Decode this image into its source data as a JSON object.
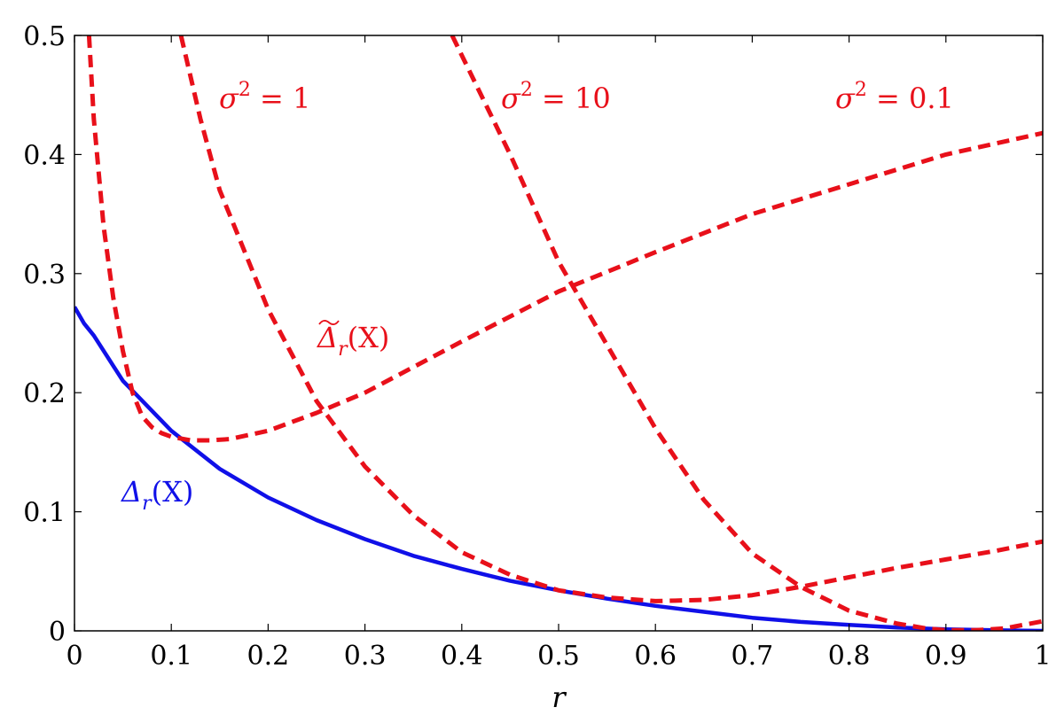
{
  "chart_data": {
    "type": "line",
    "xlabel": "r",
    "ylabel": "",
    "xlim": [
      0,
      1
    ],
    "ylim": [
      0,
      0.5
    ],
    "xticks": [
      "0",
      "0.1",
      "0.2",
      "0.3",
      "0.4",
      "0.5",
      "0.6",
      "0.7",
      "0.8",
      "0.9",
      "1"
    ],
    "yticks": [
      "0",
      "0.1",
      "0.2",
      "0.3",
      "0.4",
      "0.5"
    ],
    "grid": false,
    "colors": {
      "red": "#e8101a",
      "blue": "#1010e8"
    },
    "series": [
      {
        "label": "Δr(X)",
        "style": "solid",
        "color": "blue",
        "x": [
          0.0,
          0.01,
          0.02,
          0.05,
          0.1,
          0.15,
          0.2,
          0.25,
          0.3,
          0.35,
          0.4,
          0.45,
          0.5,
          0.55,
          0.6,
          0.65,
          0.7,
          0.75,
          0.8,
          0.85,
          0.9,
          0.95,
          1.0
        ],
        "y": [
          0.272,
          0.258,
          0.248,
          0.21,
          0.168,
          0.136,
          0.112,
          0.093,
          0.077,
          0.063,
          0.052,
          0.042,
          0.034,
          0.027,
          0.021,
          0.016,
          0.011,
          0.0075,
          0.005,
          0.0028,
          0.0013,
          0.0005,
          0.0
        ]
      },
      {
        "label": "σ2 = 0.1",
        "style": "dashed",
        "color": "red",
        "x": [
          0.015,
          0.02,
          0.03,
          0.04,
          0.05,
          0.06,
          0.07,
          0.08,
          0.09,
          0.1,
          0.12,
          0.14,
          0.16,
          0.2,
          0.25,
          0.3,
          0.4,
          0.5,
          0.6,
          0.7,
          0.8,
          0.9,
          1.0
        ],
        "y": [
          0.5,
          0.43,
          0.34,
          0.28,
          0.235,
          0.2,
          0.18,
          0.171,
          0.166,
          0.163,
          0.16,
          0.16,
          0.161,
          0.168,
          0.183,
          0.2,
          0.243,
          0.285,
          0.318,
          0.35,
          0.375,
          0.4,
          0.418
        ]
      },
      {
        "label": "σ2 = 1",
        "style": "dashed",
        "color": "red",
        "x": [
          0.11,
          0.13,
          0.15,
          0.2,
          0.25,
          0.3,
          0.35,
          0.4,
          0.45,
          0.5,
          0.55,
          0.6,
          0.65,
          0.7,
          0.75,
          0.8,
          0.85,
          0.9,
          0.95,
          1.0
        ],
        "y": [
          0.5,
          0.43,
          0.37,
          0.27,
          0.193,
          0.138,
          0.097,
          0.066,
          0.047,
          0.034,
          0.028,
          0.025,
          0.026,
          0.03,
          0.037,
          0.045,
          0.053,
          0.06,
          0.067,
          0.075
        ]
      },
      {
        "label": "σ2 = 10",
        "style": "dashed",
        "color": "red",
        "x": [
          0.39,
          0.42,
          0.45,
          0.5,
          0.55,
          0.6,
          0.65,
          0.7,
          0.75,
          0.8,
          0.85,
          0.88,
          0.9,
          0.93,
          0.96,
          1.0
        ],
        "y": [
          0.5,
          0.45,
          0.4,
          0.31,
          0.24,
          0.17,
          0.11,
          0.065,
          0.037,
          0.017,
          0.006,
          0.002,
          0.0005,
          0.0005,
          0.002,
          0.008
        ]
      }
    ],
    "annotations": [
      {
        "text": "σ2 = 1",
        "base": "σ",
        "sup": "2",
        "rest": " = 1",
        "color": "red"
      },
      {
        "text": "σ2 = 10",
        "base": "σ",
        "sup": "2",
        "rest": " = 10",
        "color": "red"
      },
      {
        "text": "σ2 = 0.1",
        "base": "σ",
        "sup": "2",
        "rest": " = 0.1",
        "color": "red"
      },
      {
        "text": "Δ̃r(X)",
        "base": "Δ",
        "sub": "r",
        "rest": "(X)",
        "tilde": true,
        "color": "red"
      },
      {
        "text": "Δr(X)",
        "base": "Δ",
        "sub": "r",
        "rest": "(X)",
        "tilde": false,
        "color": "blue"
      }
    ]
  }
}
